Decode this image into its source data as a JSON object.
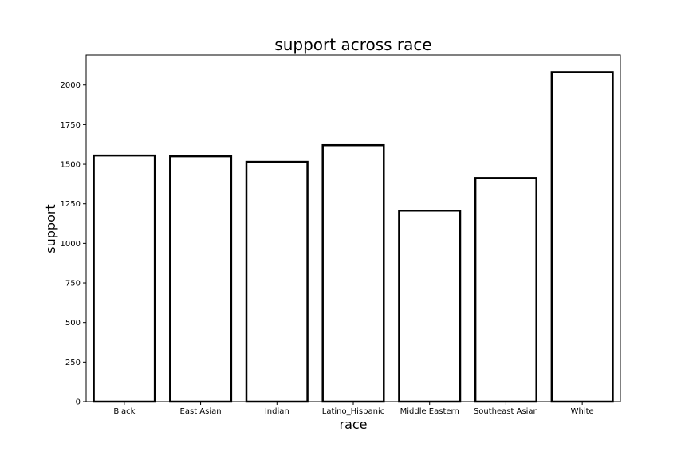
{
  "chart_data": {
    "type": "bar",
    "title": "support across race",
    "xlabel": "race",
    "ylabel": "support",
    "categories": [
      "Black",
      "East Asian",
      "Indian",
      "Latino_Hispanic",
      "Middle Eastern",
      "Southeast Asian",
      "White"
    ],
    "values": [
      1555,
      1550,
      1515,
      1620,
      1207,
      1413,
      2082
    ],
    "ylim": [
      0,
      2190
    ],
    "yticks": [
      0,
      250,
      500,
      750,
      1000,
      1250,
      1500,
      1750,
      2000
    ],
    "grid": false,
    "legend": "none",
    "colors": {
      "bar_fill": "#ffffff",
      "bar_edge": "#000000",
      "axes": "#000000"
    }
  }
}
